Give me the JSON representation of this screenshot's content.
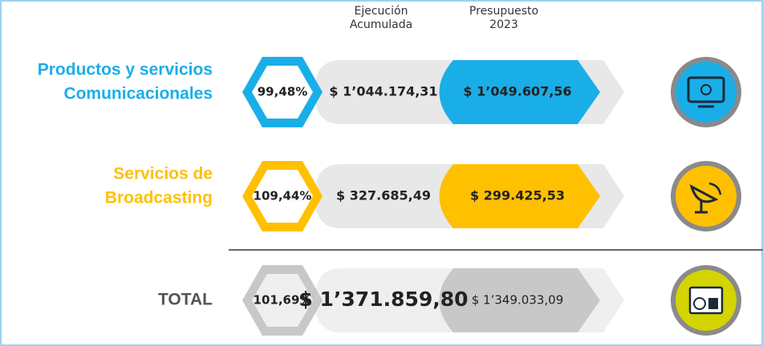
{
  "header": {
    "executed": [
      "Ejecución",
      "Acumulada"
    ],
    "budget": [
      "Presupuesto",
      "2023"
    ]
  },
  "rows": [
    {
      "label": [
        "Productos y servicios",
        "Comunicacionales"
      ],
      "percent": "99,48%",
      "executed": "$ 1’044.174,31",
      "budget": "$ 1’049.607,56",
      "color": "#1aaee8"
    },
    {
      "label": [
        "Servicios de",
        "Broadcasting"
      ],
      "percent": "109,44%",
      "executed": "$ 327.685,49",
      "budget": "$ 299.425,53",
      "color": "#ffc000"
    },
    {
      "label": [
        "TOTAL"
      ],
      "percent": "101,69%",
      "executed": "$ 1’371.859,80",
      "budget": "$ 1’349.033,09",
      "color": "#c8c8c8"
    }
  ]
}
